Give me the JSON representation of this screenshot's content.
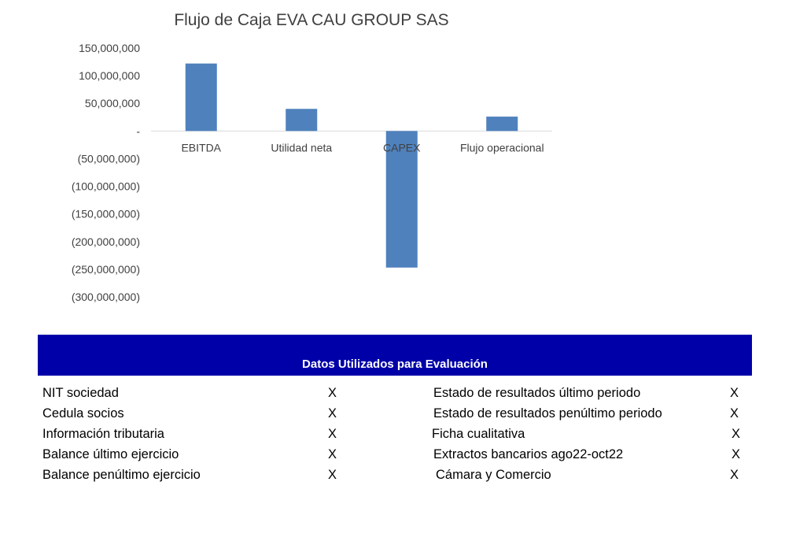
{
  "chart_data": {
    "type": "bar",
    "title": "Flujo de Caja EVA CAU GROUP SAS",
    "categories": [
      "EBITDA",
      "Utilidad neta",
      "CAPEX",
      "Flujo operacional"
    ],
    "values": [
      122000000,
      40000000,
      -247000000,
      26000000
    ],
    "ylim": [
      -300000000,
      150000000
    ],
    "yticks": [
      150000000,
      100000000,
      50000000,
      0,
      -50000000,
      -100000000,
      -150000000,
      -200000000,
      -250000000,
      -300000000
    ],
    "ytick_labels": [
      "150,000,000",
      "100,000,000",
      "50,000,000",
      "-",
      "(50,000,000)",
      "(100,000,000)",
      "(150,000,000)",
      "(200,000,000)",
      "(250,000,000)",
      "(300,000,000)"
    ],
    "bar_color": "#4f81bd",
    "axis_color": "#d9d9d9",
    "grid": false,
    "legend": "none"
  },
  "table": {
    "header": "Datos Utilizados para Evaluación",
    "header_color": "#0000a8",
    "rows": [
      {
        "left_label": "NIT sociedad",
        "left_mark": "X",
        "right_label": "Estado de resultados último periodo",
        "right_mark": "X"
      },
      {
        "left_label": "Cedula socios",
        "left_mark": "X",
        "right_label": "Estado de resultados penúltimo periodo",
        "right_mark": "X"
      },
      {
        "left_label": "Información tributaria",
        "left_mark": "X",
        "right_label": "Ficha cualitativa",
        "right_mark": "X"
      },
      {
        "left_label": "Balance último ejercicio",
        "left_mark": "X",
        "right_label": "Extractos bancarios ago22-oct22",
        "right_mark": "X"
      },
      {
        "left_label": "Balance penúltimo ejercicio",
        "left_mark": "X",
        "right_label": "Cámara y Comercio",
        "right_mark": "X"
      }
    ]
  }
}
